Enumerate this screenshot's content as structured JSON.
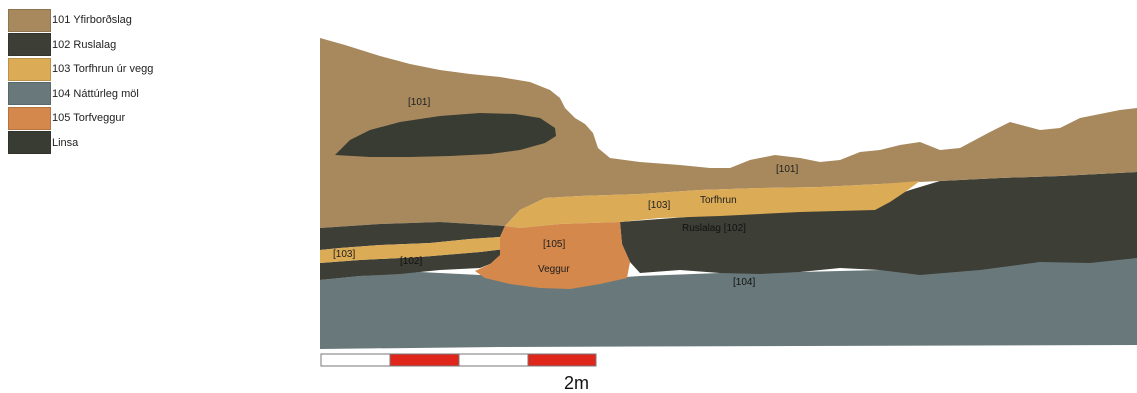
{
  "legend": {
    "items": [
      {
        "label": "101 Yfirborðslag",
        "color": "#a8895e"
      },
      {
        "label": "102 Ruslalag",
        "color": "#3d3e36"
      },
      {
        "label": "103 Torfhrun úr vegg",
        "color": "#dcab56"
      },
      {
        "label": "104 Náttúrleg möl",
        "color": "#69797b"
      },
      {
        "label": "105 Torfveggur",
        "color": "#d4884b"
      },
      {
        "label": "Linsa",
        "color": "#383c33"
      }
    ]
  },
  "labels": {
    "l101a": "[101]",
    "l101b": "[101]",
    "l103a": "[103]",
    "torfhrun": "Torfhrun",
    "l105": "[105]",
    "veggur": "Veggur",
    "ruslalag": "Ruslalag [102]",
    "l103b": "[103]",
    "l102": "[102]",
    "l104": "[104]"
  },
  "scale": {
    "label": "2m"
  }
}
